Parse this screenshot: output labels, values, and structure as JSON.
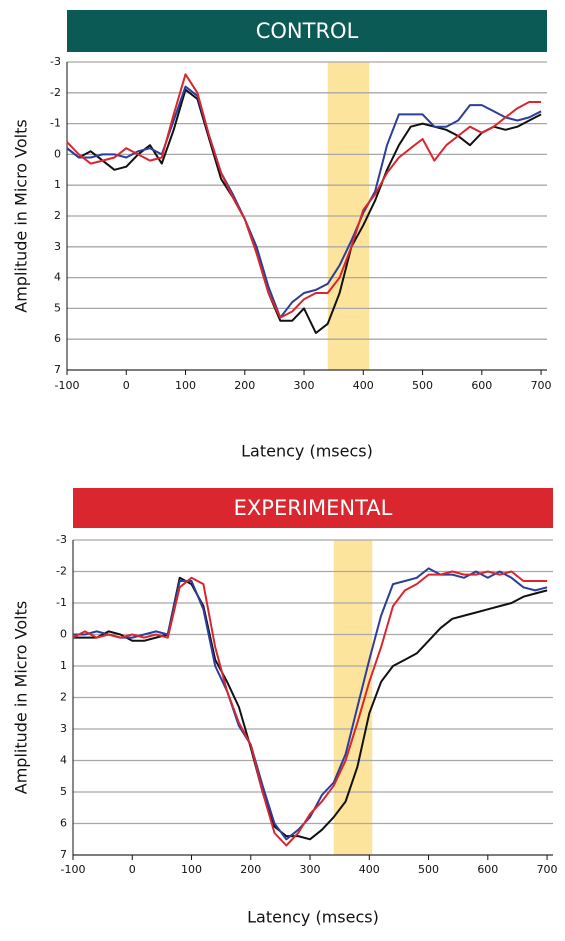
{
  "chart_data": [
    {
      "type": "line",
      "title": "CONTROL",
      "title_color": "#0b5a55",
      "xlabel": "Latency (msecs)",
      "ylabel": "Amplitude in Micro Volts",
      "x": [
        -100,
        -80,
        -60,
        -40,
        -20,
        0,
        20,
        40,
        60,
        80,
        100,
        120,
        140,
        160,
        180,
        200,
        220,
        240,
        260,
        280,
        300,
        320,
        340,
        360,
        380,
        400,
        420,
        440,
        460,
        480,
        500,
        520,
        540,
        560,
        580,
        600,
        620,
        640,
        660,
        680,
        700
      ],
      "series": [
        {
          "color": "#111111",
          "values": [
            -0.2,
            0.1,
            -0.1,
            0.2,
            0.5,
            0.4,
            0,
            -0.3,
            0.3,
            -0.8,
            -2.1,
            -1.8,
            -0.5,
            0.8,
            1.4,
            2.1,
            3.2,
            4.5,
            5.4,
            5.4,
            5.0,
            5.8,
            5.5,
            4.5,
            3.0,
            2.3,
            1.5,
            0.5,
            -0.3,
            -0.9,
            -1.0,
            -0.9,
            -0.8,
            -0.6,
            -0.3,
            -0.7,
            -0.9,
            -0.8,
            -0.9,
            -1.1,
            -1.3
          ]
        },
        {
          "color": "#2b3f9a",
          "values": [
            -0.2,
            0.1,
            0.1,
            0,
            0,
            0.1,
            -0.1,
            -0.2,
            0,
            -1.1,
            -2.2,
            -1.9,
            -0.6,
            0.6,
            1.3,
            2.1,
            3.0,
            4.3,
            5.3,
            4.8,
            4.5,
            4.4,
            4.2,
            3.6,
            2.8,
            1.9,
            1.2,
            -0.3,
            -1.3,
            -1.3,
            -1.3,
            -0.9,
            -0.9,
            -1.1,
            -1.6,
            -1.6,
            -1.4,
            -1.2,
            -1.1,
            -1.2,
            -1.4
          ]
        },
        {
          "color": "#d9262f",
          "values": [
            -0.4,
            0,
            0.3,
            0.2,
            0.1,
            -0.2,
            0,
            0.2,
            0.1,
            -1.3,
            -2.6,
            -2.0,
            -0.6,
            0.6,
            1.4,
            2.1,
            3.2,
            4.5,
            5.3,
            5.1,
            4.7,
            4.5,
            4.5,
            4.0,
            3.0,
            1.8,
            1.3,
            0.6,
            0.1,
            -0.2,
            -0.5,
            0.2,
            -0.3,
            -0.6,
            -0.9,
            -0.7,
            -0.9,
            -1.2,
            -1.5,
            -1.7,
            -1.7
          ]
        }
      ],
      "xlim": [
        -100,
        710
      ],
      "xticks": [
        -100,
        0,
        100,
        200,
        300,
        400,
        500,
        600,
        700
      ],
      "ylim": [
        -3,
        7
      ],
      "yticks": [
        -3,
        -2,
        -1,
        0,
        1,
        2,
        3,
        4,
        5,
        6,
        7
      ],
      "y_inverted": true,
      "grid": true,
      "highlight": [
        340,
        410
      ],
      "highlight_color": "#fde49c"
    },
    {
      "type": "line",
      "title": "EXPERIMENTAL",
      "title_color": "#d9262f",
      "xlabel": "Latency (msecs)",
      "ylabel": "Amplitude in Micro Volts",
      "x": [
        -100,
        -80,
        -60,
        -40,
        -20,
        0,
        20,
        40,
        60,
        80,
        100,
        120,
        140,
        160,
        180,
        200,
        220,
        240,
        260,
        280,
        300,
        320,
        340,
        360,
        380,
        400,
        420,
        440,
        460,
        480,
        500,
        520,
        540,
        560,
        580,
        600,
        620,
        640,
        660,
        680,
        700
      ],
      "series": [
        {
          "color": "#111111",
          "values": [
            0.1,
            0.1,
            0.1,
            -0.1,
            0,
            0.2,
            0.2,
            0.1,
            0,
            -1.8,
            -1.6,
            -0.9,
            0.8,
            1.5,
            2.3,
            3.6,
            5.0,
            6.1,
            6.4,
            6.4,
            6.5,
            6.2,
            5.8,
            5.3,
            4.2,
            2.5,
            1.5,
            1.0,
            0.8,
            0.6,
            0.2,
            -0.2,
            -0.5,
            -0.6,
            -0.7,
            -0.8,
            -0.9,
            -1.0,
            -1.2,
            -1.3,
            -1.4
          ]
        },
        {
          "color": "#2b3f9a",
          "values": [
            0,
            0,
            -0.1,
            0,
            0.1,
            0.1,
            0,
            -0.1,
            0,
            -1.7,
            -1.7,
            -0.8,
            1.0,
            1.8,
            2.9,
            3.5,
            4.8,
            6.0,
            6.5,
            6.2,
            5.8,
            5.1,
            4.7,
            3.8,
            2.3,
            0.8,
            -0.6,
            -1.6,
            -1.7,
            -1.8,
            -2.1,
            -1.9,
            -1.9,
            -1.8,
            -2.0,
            -1.8,
            -2.0,
            -1.8,
            -1.5,
            -1.4,
            -1.5
          ]
        },
        {
          "color": "#d9262f",
          "values": [
            0.1,
            -0.1,
            0.1,
            0,
            0.1,
            0,
            0.1,
            0,
            0.1,
            -1.5,
            -1.8,
            -1.6,
            0.4,
            1.8,
            2.8,
            3.5,
            5.0,
            6.3,
            6.7,
            6.3,
            5.7,
            5.3,
            4.8,
            4.0,
            2.8,
            1.5,
            0.4,
            -0.9,
            -1.4,
            -1.6,
            -1.9,
            -1.9,
            -2.0,
            -1.9,
            -1.9,
            -2.0,
            -1.9,
            -2.0,
            -1.7,
            -1.7,
            -1.7
          ]
        }
      ],
      "xlim": [
        -100,
        710
      ],
      "xticks": [
        -100,
        0,
        100,
        200,
        300,
        400,
        500,
        600,
        700
      ],
      "ylim": [
        -3,
        7
      ],
      "yticks": [
        -3,
        -2,
        -1,
        0,
        1,
        2,
        3,
        4,
        5,
        6,
        7
      ],
      "y_inverted": true,
      "grid": true,
      "highlight": [
        340,
        405
      ],
      "highlight_color": "#fde49c"
    }
  ]
}
